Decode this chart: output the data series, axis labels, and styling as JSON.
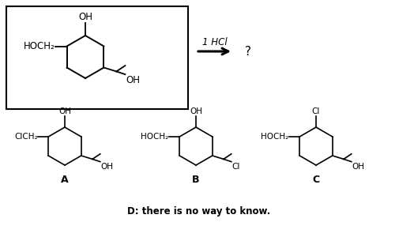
{
  "figsize": [
    5.05,
    2.86
  ],
  "dpi": 100,
  "background_color": "#ffffff",
  "label_D": "D: there is no way to know.",
  "label_A": "A",
  "label_B": "B",
  "label_C": "C",
  "arrow_text": "1 HCl",
  "question_mark": "?"
}
